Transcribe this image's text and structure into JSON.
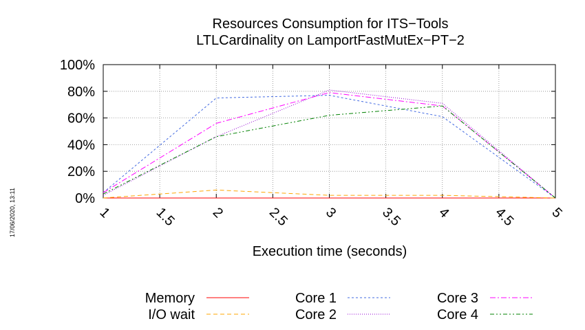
{
  "side_stamp": "17/06/2020, 13:11",
  "chart_data": {
    "type": "line",
    "title": "Resources Consumption for ITS−Tools",
    "subtitle": "LTLCardinality on LamportFastMutEx−PT−2",
    "xlabel": "Execution time (seconds)",
    "ylabel": "",
    "xlim": [
      1,
      5
    ],
    "ylim": [
      0,
      100
    ],
    "x_ticks": [
      "1",
      "1.5",
      "2",
      "2.5",
      "3",
      "3.5",
      "4",
      "4.5",
      "5"
    ],
    "x_tick_values": [
      1,
      1.5,
      2,
      2.5,
      3,
      3.5,
      4,
      4.5,
      5
    ],
    "y_ticks": [
      "0%",
      "20%",
      "40%",
      "60%",
      "80%",
      "100%"
    ],
    "y_tick_values": [
      0,
      20,
      40,
      60,
      80,
      100
    ],
    "grid": true,
    "legend_position": "bottom",
    "x": [
      1,
      2,
      3,
      4,
      5
    ],
    "series": [
      {
        "name": "Memory",
        "values": [
          0,
          0,
          0,
          0,
          0
        ],
        "color": "#ff0000",
        "dash": "solid"
      },
      {
        "name": "I/O wait",
        "values": [
          0,
          6,
          2,
          2,
          0
        ],
        "color": "#ffa500",
        "dash": "dashed"
      },
      {
        "name": "Core 1",
        "values": [
          4,
          75,
          77,
          61,
          0
        ],
        "color": "#4169e1",
        "dash": "dotted"
      },
      {
        "name": "Core 2",
        "values": [
          2,
          46,
          81,
          71,
          0
        ],
        "color": "#9400d3",
        "dash": "fine-dotted"
      },
      {
        "name": "Core 3",
        "values": [
          4,
          56,
          79,
          69,
          0
        ],
        "color": "#ff00ff",
        "dash": "dash-dot"
      },
      {
        "name": "Core 4",
        "values": [
          3,
          46,
          62,
          69,
          0
        ],
        "color": "#008000",
        "dash": "dash-dot-dot"
      }
    ]
  }
}
